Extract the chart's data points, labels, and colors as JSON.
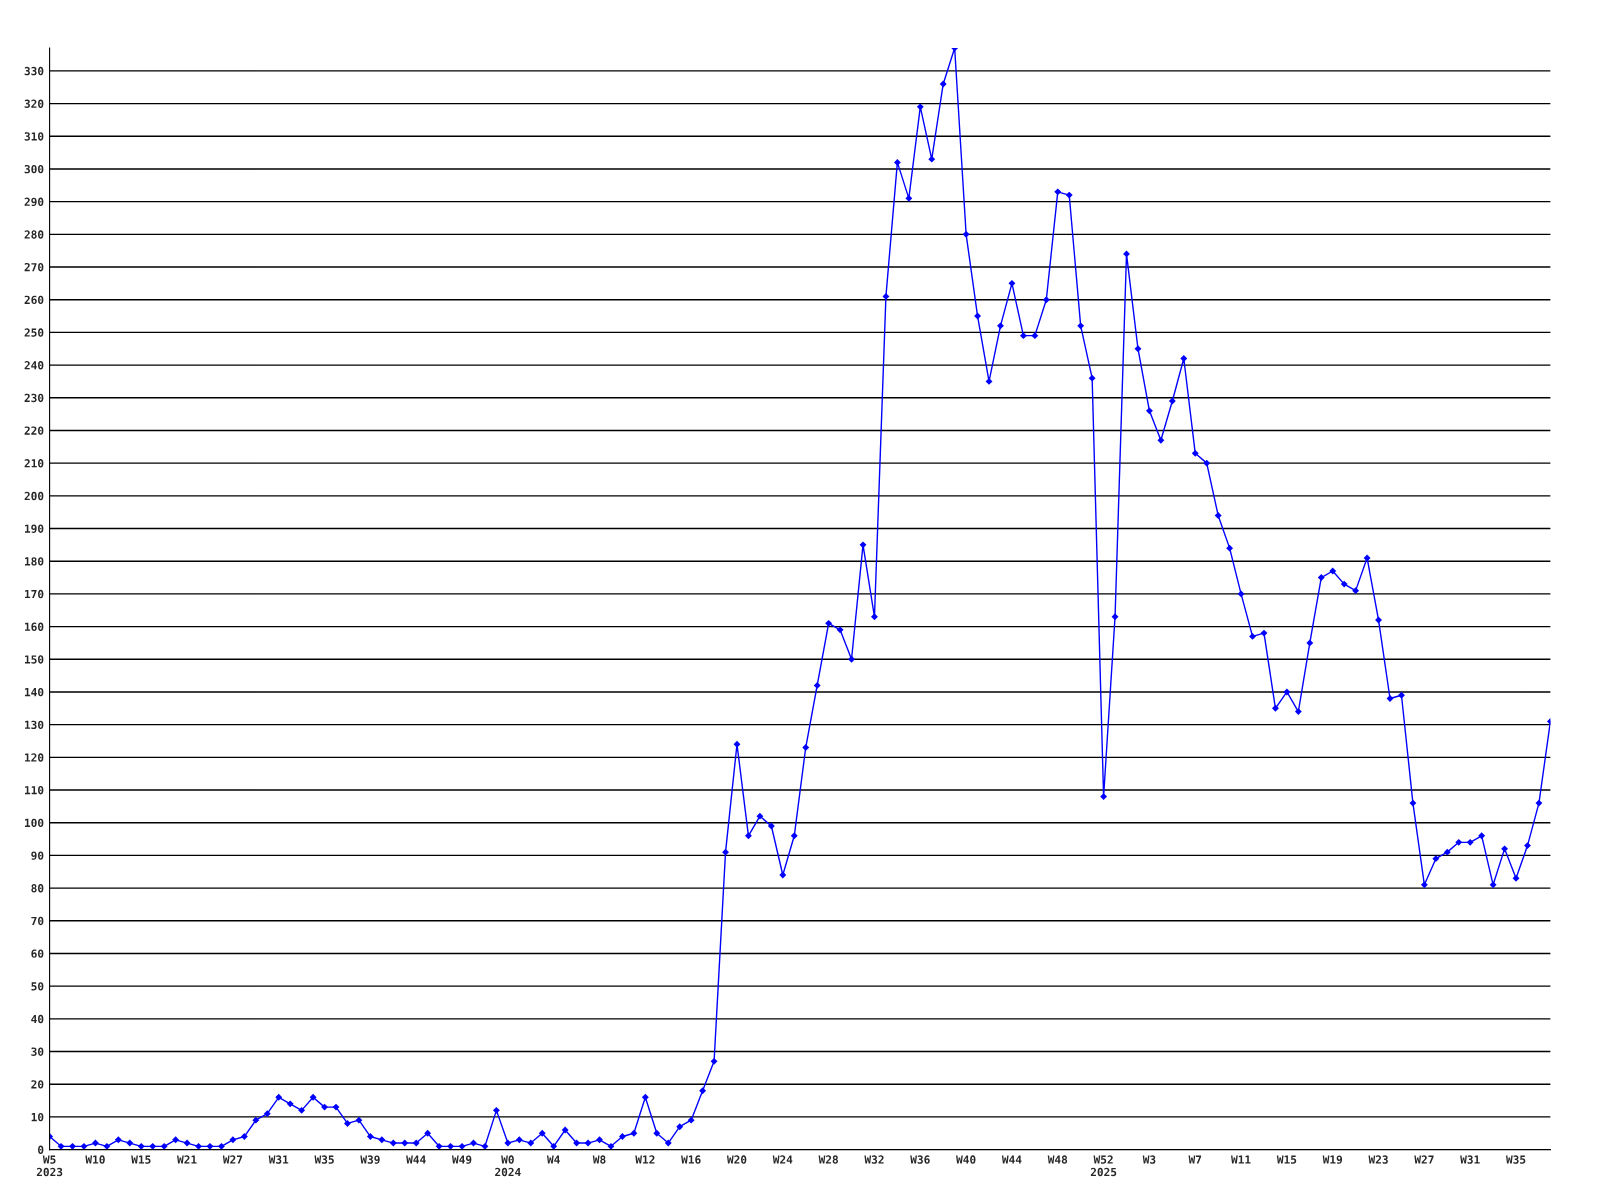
{
  "chart_data": {
    "type": "line",
    "categories": [
      "W5\n2023",
      null,
      null,
      null,
      "W10",
      null,
      null,
      null,
      "W15",
      null,
      null,
      null,
      "W21",
      null,
      null,
      null,
      "W27",
      null,
      null,
      null,
      "W31",
      null,
      null,
      null,
      "W35",
      null,
      null,
      null,
      "W39",
      null,
      null,
      null,
      "W44",
      null,
      null,
      null,
      "W49",
      null,
      null,
      null,
      "W0\n2024",
      null,
      null,
      null,
      "W4",
      null,
      null,
      null,
      "W8",
      null,
      null,
      null,
      "W12",
      null,
      null,
      null,
      "W16",
      null,
      null,
      null,
      "W20",
      null,
      null,
      null,
      "W24",
      null,
      null,
      null,
      "W28",
      null,
      null,
      null,
      "W32",
      null,
      null,
      null,
      "W36",
      null,
      null,
      null,
      "W40",
      null,
      null,
      null,
      "W44",
      null,
      null,
      null,
      "W48",
      null,
      null,
      null,
      "W52\n2025",
      null,
      null,
      null,
      "W3",
      null,
      null,
      null,
      "W7",
      null,
      null,
      null,
      "W11",
      null,
      null,
      null,
      "W15",
      null,
      null,
      null,
      "W19",
      null,
      null,
      null,
      "W23",
      null,
      null,
      null,
      "W27",
      null,
      null,
      null,
      "W31",
      null,
      null,
      null,
      "W35",
      null,
      null,
      null
    ],
    "series": [
      {
        "color": "#0000ff",
        "values": [
          4,
          1,
          1,
          1,
          2,
          1,
          3,
          2,
          1,
          1,
          1,
          3,
          2,
          1,
          1,
          1,
          3,
          4,
          9,
          11,
          16,
          14,
          12,
          16,
          13,
          13,
          8,
          9,
          4,
          3,
          2,
          2,
          2,
          5,
          1,
          1,
          1,
          2,
          1,
          12,
          2,
          3,
          2,
          5,
          1,
          6,
          2,
          2,
          3,
          1,
          4,
          5,
          16,
          5,
          2,
          7,
          9,
          18,
          27,
          91,
          124,
          96,
          102,
          99,
          84,
          96,
          123,
          142,
          161,
          159,
          150,
          185,
          163,
          261,
          302,
          291,
          319,
          303,
          326,
          337,
          280,
          255,
          235,
          252,
          265,
          249,
          249,
          260,
          293,
          292,
          252,
          236,
          108,
          163,
          274,
          245,
          226,
          217,
          229,
          242,
          213,
          210,
          194,
          184,
          170,
          157,
          158,
          135,
          140,
          134,
          155,
          175,
          177,
          173,
          171,
          181,
          162,
          138,
          139,
          106,
          81,
          89,
          91,
          94,
          94,
          96,
          81,
          92,
          83,
          93,
          106,
          131
        ]
      }
    ],
    "ylim": [
      0,
      337
    ],
    "yticks": [
      0,
      10,
      20,
      30,
      40,
      50,
      60,
      70,
      80,
      90,
      100,
      110,
      120,
      130,
      140,
      150,
      160,
      170,
      180,
      190,
      200,
      210,
      220,
      230,
      240,
      250,
      260,
      270,
      280,
      290,
      300,
      310,
      320,
      330
    ],
    "grid": "y",
    "marker": "diamond",
    "line_style": "solid"
  }
}
